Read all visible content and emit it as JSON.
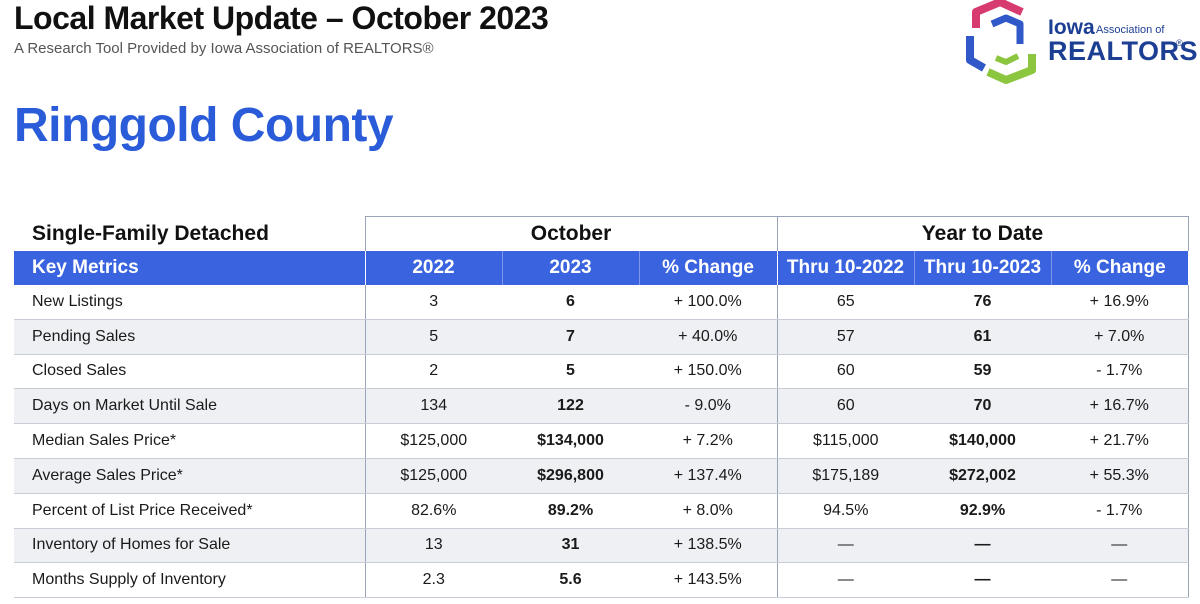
{
  "header": {
    "title": "Local Market Update – October 2023",
    "subtitle": "A Research Tool Provided by Iowa Association of REALTORS®"
  },
  "logo": {
    "iowa": "Iowa",
    "association_of": "Association of",
    "realtors": "REALTORS",
    "registered": "®",
    "colors": [
      "#d63a6e",
      "#3058c8",
      "#8cc63f"
    ]
  },
  "county": "Ringgold County",
  "table": {
    "property_type": "Single-Family Detached",
    "group_october": "October",
    "group_ytd": "Year to Date",
    "columns": [
      "Key Metrics",
      "2022",
      "2023",
      "% Change",
      "Thru 10-2022",
      "Thru 10-2023",
      "% Change"
    ],
    "rows": [
      {
        "metric": "New Listings",
        "v2022": "3",
        "v2023": "6",
        "chg": "+ 100.0%",
        "ytd2022": "65",
        "ytd2023": "76",
        "ytdchg": "+ 16.9%"
      },
      {
        "metric": "Pending Sales",
        "v2022": "5",
        "v2023": "7",
        "chg": "+ 40.0%",
        "ytd2022": "57",
        "ytd2023": "61",
        "ytdchg": "+ 7.0%"
      },
      {
        "metric": "Closed Sales",
        "v2022": "2",
        "v2023": "5",
        "chg": "+ 150.0%",
        "ytd2022": "60",
        "ytd2023": "59",
        "ytdchg": "- 1.7%"
      },
      {
        "metric": "Days on Market Until Sale",
        "v2022": "134",
        "v2023": "122",
        "chg": "- 9.0%",
        "ytd2022": "60",
        "ytd2023": "70",
        "ytdchg": "+ 16.7%"
      },
      {
        "metric": "Median Sales Price*",
        "v2022": "$125,000",
        "v2023": "$134,000",
        "chg": "+ 7.2%",
        "ytd2022": "$115,000",
        "ytd2023": "$140,000",
        "ytdchg": "+ 21.7%"
      },
      {
        "metric": "Average Sales Price*",
        "v2022": "$125,000",
        "v2023": "$296,800",
        "chg": "+ 137.4%",
        "ytd2022": "$175,189",
        "ytd2023": "$272,002",
        "ytdchg": "+ 55.3%"
      },
      {
        "metric": "Percent of List Price Received*",
        "v2022": "82.6%",
        "v2023": "89.2%",
        "chg": "+ 8.0%",
        "ytd2022": "94.5%",
        "ytd2023": "92.9%",
        "ytdchg": "- 1.7%"
      },
      {
        "metric": "Inventory of Homes for Sale",
        "v2022": "13",
        "v2023": "31",
        "chg": "+ 138.5%",
        "ytd2022": "—",
        "ytd2023": "—",
        "ytdchg": "—"
      },
      {
        "metric": "Months Supply of Inventory",
        "v2022": "2.3",
        "v2023": "5.6",
        "chg": "+ 143.5%",
        "ytd2022": "—",
        "ytd2023": "—",
        "ytdchg": "—"
      }
    ]
  }
}
